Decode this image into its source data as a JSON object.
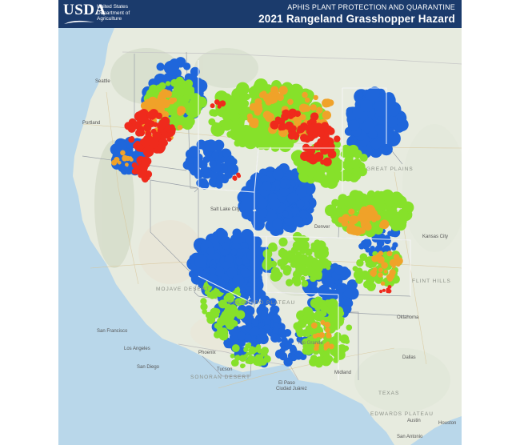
{
  "header": {
    "logo_text": "USDA",
    "logo_lines": [
      "United States",
      "Department of",
      "Agriculture"
    ],
    "agency": "APHIS PLANT PROTECTION AND QUARANTINE",
    "title": "2021 Rangeland Grasshopper Hazard"
  },
  "legend_colors": {
    "low": "#1f66db",
    "moderate": "#86e12a",
    "high": "#f0a229",
    "severe": "#ef2a1c"
  },
  "map_labels": {
    "great_plains": "GREAT PLAINS",
    "edwards_plateau": "EDWARDS PLATEAU",
    "sonoran_desert": "SONORAN DESERT",
    "mojave": "MOJAVE DESERT",
    "flint_hills": "FLINT HILLS",
    "texas": "TEXAS",
    "san_francisco": "San Francisco",
    "los_angeles": "Los Angeles",
    "san_diego": "San Diego",
    "oklahoma": "Oklahoma",
    "dallas": "Dallas",
    "austin": "Austin",
    "houston": "Houston",
    "san_antonio": "San Antonio",
    "phoenix": "Phoenix",
    "tucson": "Tucson",
    "el_paso": "El Paso",
    "midland": "Midland",
    "kansas_city": "Kansas City",
    "ciudad_juarez": "Ciudad Juárez",
    "seattle": "Seattle",
    "portland": "Portland",
    "denver": "Denver",
    "salt_lake": "Salt Lake City",
    "colorado_plateau": "COLORADO PLATEAU",
    "rio_grande": "Rio Grande"
  }
}
